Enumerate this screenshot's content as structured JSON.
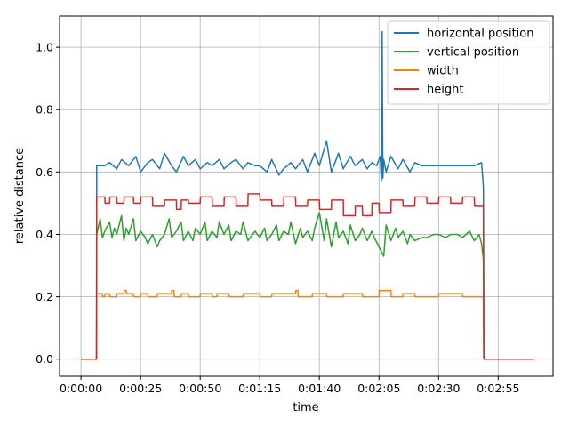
{
  "chart_data": {
    "type": "line",
    "title": "",
    "xlabel": "time",
    "ylabel": "relative distance",
    "x_unit": "seconds",
    "xlim": [
      -9,
      198
    ],
    "ylim": [
      -0.055,
      1.1
    ],
    "x_ticks": [
      0,
      25,
      50,
      75,
      100,
      125,
      150,
      175
    ],
    "x_tick_labels": [
      "0:00:00",
      "0:00:25",
      "0:00:50",
      "0:01:15",
      "0:01:40",
      "0:02:05",
      "0:02:30",
      "0:02:55"
    ],
    "y_ticks": [
      0.0,
      0.2,
      0.4,
      0.6,
      0.8,
      1.0
    ],
    "y_tick_labels": [
      "0.0",
      "0.2",
      "0.4",
      "0.6",
      "0.8",
      "1.0"
    ],
    "grid": true,
    "legend_position": "top-right",
    "series": [
      {
        "name": "horizontal position",
        "color": "#1f77b4",
        "x": [
          0,
          6.5,
          6.6,
          10,
          12,
          15,
          17,
          20,
          23,
          25,
          28,
          30,
          33,
          35,
          38,
          40,
          43,
          45,
          48,
          50,
          53,
          55,
          58,
          60,
          63,
          65,
          68,
          70,
          73,
          75,
          78,
          80,
          83,
          85,
          88,
          90,
          93,
          95,
          98,
          100,
          103,
          105,
          108,
          110,
          113,
          115,
          118,
          120,
          122,
          124,
          125.5,
          126,
          126.3,
          126.6,
          127,
          128,
          130,
          133,
          135,
          138,
          140,
          143,
          145,
          148,
          150,
          153,
          155,
          158,
          160,
          163,
          165,
          168,
          168.8,
          169,
          190
        ],
        "y": [
          0,
          0,
          0.62,
          0.62,
          0.63,
          0.61,
          0.64,
          0.62,
          0.65,
          0.6,
          0.63,
          0.64,
          0.61,
          0.66,
          0.62,
          0.6,
          0.65,
          0.62,
          0.64,
          0.61,
          0.63,
          0.62,
          0.64,
          0.61,
          0.63,
          0.64,
          0.61,
          0.63,
          0.62,
          0.62,
          0.6,
          0.64,
          0.59,
          0.61,
          0.63,
          0.61,
          0.64,
          0.6,
          0.66,
          0.62,
          0.7,
          0.6,
          0.66,
          0.61,
          0.65,
          0.62,
          0.64,
          0.61,
          0.63,
          0.62,
          0.65,
          0.57,
          1.05,
          0.58,
          0.64,
          0.6,
          0.65,
          0.61,
          0.64,
          0.6,
          0.63,
          0.62,
          0.62,
          0.62,
          0.62,
          0.62,
          0.62,
          0.62,
          0.62,
          0.62,
          0.62,
          0.63,
          0.55,
          0,
          0
        ]
      },
      {
        "name": "vertical position",
        "color": "#2ca02c",
        "x": [
          0,
          6.5,
          6.6,
          8,
          9,
          10,
          12,
          13,
          14,
          15,
          17,
          18,
          19,
          20,
          22,
          23,
          25,
          27,
          28,
          30,
          32,
          33,
          35,
          37,
          38,
          40,
          42,
          43,
          45,
          47,
          48,
          50,
          52,
          53,
          55,
          57,
          58,
          60,
          62,
          63,
          65,
          67,
          68,
          70,
          72,
          73,
          75,
          77,
          78,
          80,
          82,
          83,
          85,
          87,
          88,
          90,
          92,
          93,
          95,
          97,
          98,
          100,
          102,
          103,
          105,
          107,
          108,
          110,
          112,
          113,
          115,
          117,
          118,
          120,
          122,
          123,
          125,
          127,
          128,
          130,
          132,
          133,
          135,
          137,
          138,
          140,
          143,
          145,
          148,
          150,
          153,
          155,
          158,
          160,
          163,
          165,
          167,
          168,
          168.8,
          169,
          190
        ],
        "y": [
          0,
          0,
          0.4,
          0.45,
          0.39,
          0.41,
          0.44,
          0.39,
          0.42,
          0.4,
          0.46,
          0.38,
          0.42,
          0.4,
          0.45,
          0.38,
          0.41,
          0.39,
          0.37,
          0.4,
          0.36,
          0.38,
          0.4,
          0.45,
          0.39,
          0.41,
          0.44,
          0.38,
          0.41,
          0.38,
          0.42,
          0.4,
          0.44,
          0.38,
          0.41,
          0.39,
          0.44,
          0.4,
          0.43,
          0.38,
          0.41,
          0.4,
          0.44,
          0.38,
          0.4,
          0.41,
          0.39,
          0.42,
          0.38,
          0.4,
          0.43,
          0.38,
          0.41,
          0.4,
          0.44,
          0.37,
          0.42,
          0.39,
          0.41,
          0.38,
          0.42,
          0.47,
          0.38,
          0.45,
          0.36,
          0.44,
          0.39,
          0.41,
          0.37,
          0.43,
          0.38,
          0.4,
          0.42,
          0.38,
          0.41,
          0.39,
          0.36,
          0.33,
          0.43,
          0.38,
          0.42,
          0.39,
          0.41,
          0.37,
          0.4,
          0.38,
          0.39,
          0.39,
          0.4,
          0.4,
          0.39,
          0.4,
          0.4,
          0.39,
          0.41,
          0.38,
          0.4,
          0.37,
          0.32,
          0,
          0
        ]
      },
      {
        "name": "width",
        "color": "#ff7f0e",
        "x": [
          0,
          6.5,
          6.6,
          9,
          9.1,
          10,
          10.1,
          12,
          12.1,
          15,
          15.1,
          18,
          18.1,
          19,
          19.1,
          22,
          22.1,
          25,
          25.1,
          28,
          28.1,
          32,
          32.1,
          38,
          38.1,
          39,
          39.1,
          42,
          42.1,
          45,
          45.1,
          50,
          50.1,
          55,
          55.1,
          57,
          57.1,
          62,
          62.1,
          68,
          68.1,
          75,
          75.1,
          80,
          80.1,
          90,
          90.1,
          91,
          91.1,
          97,
          97.1,
          103,
          103.1,
          110,
          110.1,
          118,
          118.1,
          125,
          125.1,
          130,
          130.1,
          135,
          135.1,
          140,
          140.1,
          150,
          150.1,
          160,
          160.1,
          168.8,
          169,
          190
        ],
        "y": [
          0,
          0,
          0.21,
          0.21,
          0.2,
          0.2,
          0.21,
          0.21,
          0.2,
          0.2,
          0.21,
          0.21,
          0.22,
          0.22,
          0.21,
          0.21,
          0.2,
          0.2,
          0.21,
          0.21,
          0.2,
          0.2,
          0.21,
          0.21,
          0.22,
          0.22,
          0.2,
          0.2,
          0.21,
          0.21,
          0.2,
          0.2,
          0.21,
          0.21,
          0.2,
          0.2,
          0.21,
          0.21,
          0.2,
          0.2,
          0.21,
          0.21,
          0.2,
          0.2,
          0.21,
          0.21,
          0.22,
          0.22,
          0.2,
          0.2,
          0.21,
          0.21,
          0.2,
          0.2,
          0.21,
          0.21,
          0.2,
          0.2,
          0.22,
          0.22,
          0.2,
          0.2,
          0.21,
          0.21,
          0.2,
          0.2,
          0.21,
          0.21,
          0.2,
          0.2,
          0,
          0
        ]
      },
      {
        "name": "height",
        "color": "#d62728",
        "x": [
          0,
          6.5,
          6.6,
          10,
          10.1,
          12,
          12.1,
          15,
          15.1,
          18,
          18.1,
          22,
          22.1,
          25,
          25.1,
          30,
          30.1,
          35,
          35.1,
          40,
          40.1,
          42,
          42.1,
          45,
          45.1,
          50,
          50.1,
          55,
          55.1,
          60,
          60.1,
          65,
          65.1,
          70,
          70.1,
          75,
          75.1,
          80,
          80.1,
          85,
          85.1,
          90,
          90.1,
          95,
          95.1,
          100,
          100.1,
          105,
          105.1,
          110,
          110.1,
          115,
          115.1,
          118,
          118.1,
          122,
          122.1,
          125,
          125.1,
          130,
          130.1,
          135,
          135.1,
          140,
          140.1,
          145,
          145.1,
          150,
          150.1,
          155,
          155.1,
          160,
          160.1,
          165,
          165.1,
          168.8,
          169,
          190
        ],
        "y": [
          0,
          0,
          0.52,
          0.52,
          0.5,
          0.5,
          0.52,
          0.52,
          0.5,
          0.5,
          0.52,
          0.52,
          0.5,
          0.5,
          0.52,
          0.52,
          0.49,
          0.49,
          0.51,
          0.51,
          0.48,
          0.48,
          0.51,
          0.51,
          0.5,
          0.5,
          0.52,
          0.52,
          0.49,
          0.49,
          0.52,
          0.52,
          0.49,
          0.49,
          0.53,
          0.53,
          0.51,
          0.51,
          0.49,
          0.49,
          0.52,
          0.52,
          0.49,
          0.49,
          0.51,
          0.51,
          0.48,
          0.48,
          0.51,
          0.51,
          0.46,
          0.46,
          0.49,
          0.49,
          0.46,
          0.46,
          0.5,
          0.5,
          0.47,
          0.47,
          0.51,
          0.51,
          0.49,
          0.49,
          0.52,
          0.52,
          0.5,
          0.5,
          0.52,
          0.52,
          0.5,
          0.5,
          0.52,
          0.52,
          0.49,
          0.49,
          0,
          0
        ]
      }
    ]
  }
}
